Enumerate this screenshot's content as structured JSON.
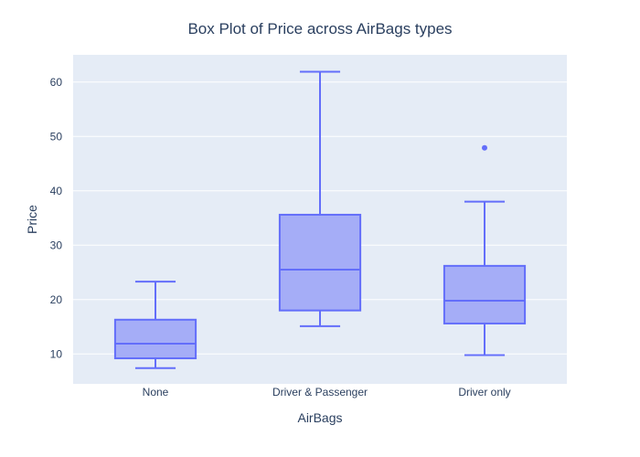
{
  "chart_data": {
    "type": "box",
    "title": "Box Plot of Price across AirBags types",
    "xlabel": "AirBags",
    "ylabel": "Price",
    "categories": [
      "None",
      "Driver & Passenger",
      "Driver only"
    ],
    "ylim": [
      4.5,
      65
    ],
    "yticks": [
      10,
      20,
      30,
      40,
      50,
      60
    ],
    "grid": true,
    "boxes": [
      {
        "category": "None",
        "min": 7.4,
        "q1": 9.2,
        "median": 11.9,
        "q3": 16.3,
        "max": 23.3,
        "outliers": []
      },
      {
        "category": "Driver & Passenger",
        "min": 15.1,
        "q1": 18.0,
        "median": 25.5,
        "q3": 35.6,
        "max": 61.9,
        "outliers": []
      },
      {
        "category": "Driver only",
        "min": 9.8,
        "q1": 15.6,
        "median": 19.8,
        "q3": 26.2,
        "max": 38.0,
        "outliers": [
          47.9
        ]
      }
    ],
    "colors": {
      "box_fill": "#a3abf7",
      "box_line": "#636efa",
      "plot_bg": "#e5ecf6",
      "grid": "#ffffff",
      "text": "#2a3f5f"
    }
  }
}
